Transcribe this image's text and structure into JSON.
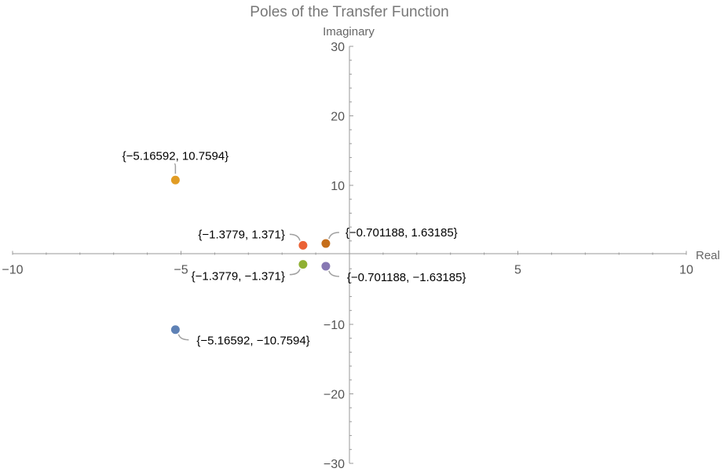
{
  "chart_data": {
    "type": "scatter",
    "title": "Poles of the Transfer Function",
    "xlabel": "Real",
    "ylabel": "Imaginary",
    "xlim": [
      -10,
      10
    ],
    "ylim": [
      -30,
      30
    ],
    "x_ticks": [
      {
        "value": -10,
        "label": "−10"
      },
      {
        "value": -5,
        "label": "−5"
      },
      {
        "value": 5,
        "label": "5"
      },
      {
        "value": 10,
        "label": "10"
      }
    ],
    "y_ticks": [
      {
        "value": -30,
        "label": "−30"
      },
      {
        "value": -20,
        "label": "−20"
      },
      {
        "value": -10,
        "label": "−10"
      },
      {
        "value": 10,
        "label": "10"
      },
      {
        "value": 20,
        "label": "20"
      },
      {
        "value": 30,
        "label": "30"
      }
    ],
    "series": [
      {
        "x": -5.16592,
        "y": -10.7594,
        "label": "{−5.16592, −10.7594}",
        "color": "#5e81b5",
        "label_side": "below-right"
      },
      {
        "x": -5.16592,
        "y": 10.7594,
        "label": "{−5.16592, 10.7594}",
        "color": "#e19c24",
        "label_side": "above"
      },
      {
        "x": -1.3779,
        "y": -1.371,
        "label": "{−1.3779, −1.371}",
        "color": "#8fb032",
        "label_side": "below-left"
      },
      {
        "x": -1.3779,
        "y": 1.371,
        "label": "{−1.3779, 1.371}",
        "color": "#eb6235",
        "label_side": "above-left"
      },
      {
        "x": -0.701188,
        "y": -1.63185,
        "label": "{−0.701188, −1.63185}",
        "color": "#8778b3",
        "label_side": "below-right"
      },
      {
        "x": -0.701188,
        "y": 1.63185,
        "label": "{−0.701188, 1.63185}",
        "color": "#c56e1a",
        "label_side": "above-right"
      }
    ]
  }
}
